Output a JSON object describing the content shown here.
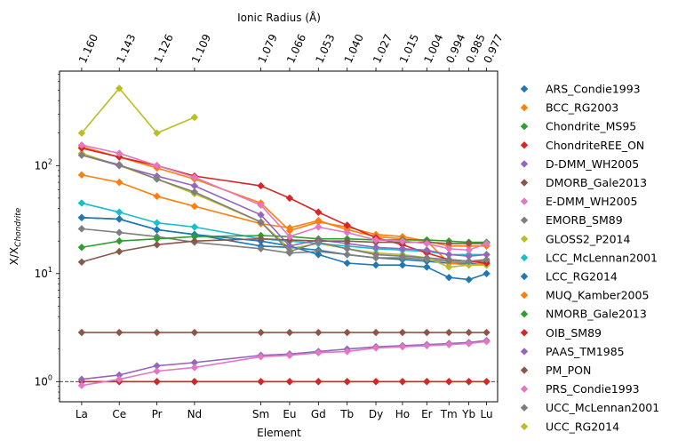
{
  "chart_data": {
    "type": "line",
    "title": "",
    "xlabel": "Element",
    "ylabel": "X/X",
    "ylabel_subscript": "Chondrite",
    "top_xlabel": "Ionic Radius (Å)",
    "yscale": "log",
    "ylim": [
      0.65,
      750
    ],
    "ylim_log10": [
      -0.187,
      2.875
    ],
    "xlim": [
      1.17,
      0.972
    ],
    "reference_line_y": 1,
    "grid": false,
    "legend_position": "outside-right",
    "elements": [
      {
        "name": "La",
        "radius": 1.16
      },
      {
        "name": "Ce",
        "radius": 1.143
      },
      {
        "name": "Pr",
        "radius": 1.126
      },
      {
        "name": "Nd",
        "radius": 1.109
      },
      {
        "name": "Sm",
        "radius": 1.079
      },
      {
        "name": "Eu",
        "radius": 1.066
      },
      {
        "name": "Gd",
        "radius": 1.053
      },
      {
        "name": "Tb",
        "radius": 1.04
      },
      {
        "name": "Dy",
        "radius": 1.027
      },
      {
        "name": "Ho",
        "radius": 1.015
      },
      {
        "name": "Er",
        "radius": 1.004
      },
      {
        "name": "Tm",
        "radius": 0.994
      },
      {
        "name": "Yb",
        "radius": 0.985
      },
      {
        "name": "Lu",
        "radius": 0.977
      }
    ],
    "y_ticks": [
      {
        "value": 1,
        "base": "10",
        "exp": "0"
      },
      {
        "value": 10,
        "base": "10",
        "exp": "1"
      },
      {
        "value": 100,
        "base": "10",
        "exp": "2"
      }
    ],
    "top_tick_labels": [
      "1.160",
      "1.143",
      "1.126",
      "1.109",
      "1.079",
      "1.066",
      "1.053",
      "1.040",
      "1.027",
      "1.015",
      "1.004",
      "0.994",
      "0.985",
      "0.977"
    ],
    "series": [
      {
        "name": "ARS_Condie1993",
        "color": "#1f77b4",
        "values": [
          33,
          32,
          25.5,
          23,
          18,
          17.5,
          16.5,
          15,
          14,
          13.5,
          13,
          12.5,
          12.5,
          12
        ]
      },
      {
        "name": "BCC_RG2003",
        "color": "#ff7f0e",
        "values": [
          150,
          120,
          95,
          75,
          45,
          25,
          30,
          27,
          23,
          22,
          20,
          12.5,
          12,
          12.5
        ]
      },
      {
        "name": "Chondrite_MS95",
        "color": "#2ca02c",
        "values": [
          1,
          1,
          1,
          1,
          1,
          1,
          1,
          1,
          1,
          1,
          1,
          1,
          1,
          1
        ]
      },
      {
        "name": "ChondriteREE_ON",
        "color": "#d62728",
        "values": [
          1,
          1,
          1,
          1,
          1,
          1,
          1,
          1,
          1,
          1,
          1,
          1,
          1,
          1
        ]
      },
      {
        "name": "D-DMM_WH2005",
        "color": "#9467bd",
        "values": [
          1.05,
          1.15,
          1.4,
          1.5,
          1.75,
          1.8,
          1.9,
          2,
          2.1,
          2.15,
          2.2,
          2.25,
          2.3,
          2.4
        ]
      },
      {
        "name": "DMORB_Gale2013",
        "color": "#8c564b",
        "values": [
          2.85,
          2.85,
          2.85,
          2.85,
          2.85,
          2.85,
          2.85,
          2.85,
          2.85,
          2.85,
          2.85,
          2.85,
          2.85,
          2.85
        ]
      },
      {
        "name": "E-DMM_WH2005",
        "color": "#e377c2",
        "values": [
          0.92,
          1.05,
          1.25,
          1.35,
          1.7,
          1.75,
          1.85,
          1.9,
          2.05,
          2.1,
          2.15,
          2.2,
          2.25,
          2.35
        ]
      },
      {
        "name": "EMORB_SM89",
        "color": "#7f7f7f",
        "values": [
          26,
          24,
          22,
          19.5,
          17,
          15.5,
          16,
          15,
          14,
          14,
          13.5,
          13,
          13,
          13
        ]
      },
      {
        "name": "GLOSS2_P2014",
        "color": "#bcbd22",
        "values": [
          130,
          100,
          75,
          55,
          30,
          17,
          19,
          17,
          15.5,
          15,
          14,
          11.5,
          12,
          12
        ]
      },
      {
        "name": "LCC_McLennan2001",
        "color": "#17becf",
        "values": [
          45,
          37,
          29.5,
          27,
          21,
          20,
          19,
          18,
          17,
          16.5,
          16,
          15,
          15,
          15
        ]
      },
      {
        "name": "LCC_RG2014",
        "color": "#1f77b4",
        "values": [
          33,
          32,
          25.5,
          23,
          20,
          18,
          15,
          12.5,
          12,
          12,
          11.5,
          9.2,
          8.8,
          10
        ]
      },
      {
        "name": "MUQ_Kamber2005",
        "color": "#ff7f0e",
        "values": [
          82,
          70,
          52,
          42,
          29,
          26.5,
          31,
          25.5,
          22,
          21,
          20,
          18,
          18,
          18
        ]
      },
      {
        "name": "NMORB_Gale2013",
        "color": "#2ca02c",
        "values": [
          17.5,
          20,
          21,
          22,
          22.5,
          22,
          21,
          21,
          20.5,
          20.5,
          20.5,
          20,
          19.5,
          19.5
        ]
      },
      {
        "name": "OIB_SM89",
        "color": "#d62728",
        "values": [
          145,
          120,
          100,
          80,
          65,
          50,
          37,
          28,
          21.5,
          18.5,
          15.5,
          13.5,
          13,
          12.5
        ]
      },
      {
        "name": "PAAS_TM1985",
        "color": "#9467bd",
        "values": [
          125,
          100,
          80,
          65,
          35,
          18,
          20.5,
          19,
          17.5,
          17,
          16.5,
          15,
          14.5,
          15
        ]
      },
      {
        "name": "PM_PON",
        "color": "#8c564b",
        "values": [
          12.8,
          16,
          18.5,
          20,
          21,
          20.5,
          20,
          20,
          19.5,
          19.5,
          19.5,
          19,
          19,
          19
        ]
      },
      {
        "name": "PRS_Condie1993",
        "color": "#e377c2",
        "values": [
          155,
          130,
          100,
          78,
          43,
          22,
          27,
          24,
          20.5,
          20,
          19,
          17,
          16.5,
          19
        ]
      },
      {
        "name": "UCC_McLennan2001",
        "color": "#7f7f7f",
        "values": [
          125,
          102,
          75,
          57,
          30,
          16,
          19.5,
          17,
          15,
          14.5,
          14,
          13.5,
          13,
          13.5
        ]
      },
      {
        "name": "UCC_RG2014",
        "color": "#bcbd22",
        "values": [
          200,
          520,
          200,
          280,
          null,
          null,
          null,
          null,
          null,
          null,
          null,
          null,
          null,
          null
        ]
      }
    ]
  }
}
